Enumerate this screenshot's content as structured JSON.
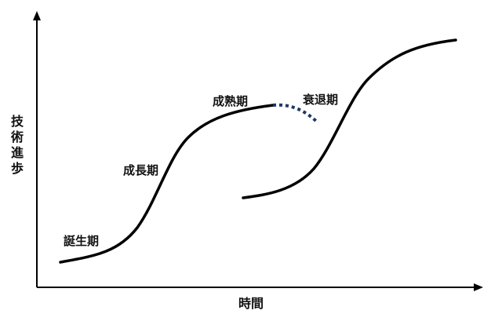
{
  "axes": {
    "y_title": "技術進歩",
    "x_title": "時間"
  },
  "stages": {
    "birth": "誕生期",
    "growth": "成長期",
    "maturity": "成熟期",
    "decline": "衰退期"
  },
  "colors": {
    "curve": "#000000",
    "decline": "#1f3864",
    "axis": "#000000"
  }
}
